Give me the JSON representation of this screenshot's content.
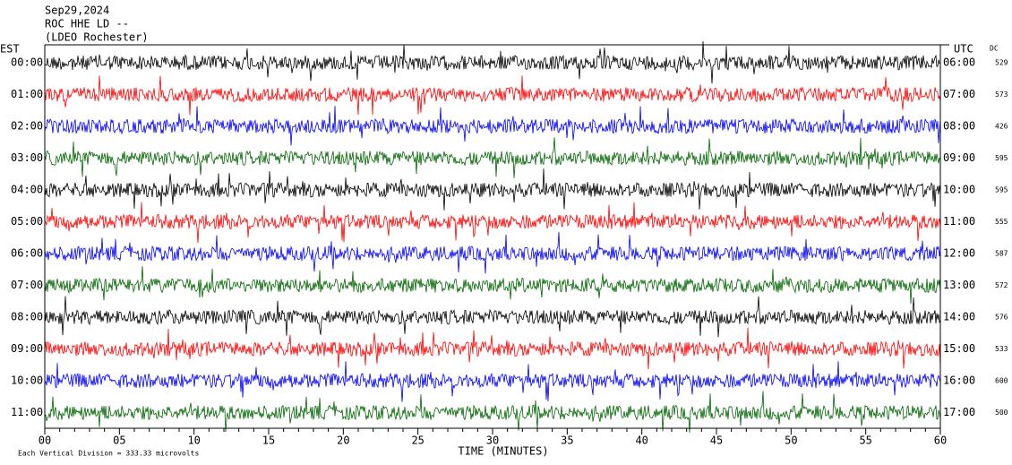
{
  "header": {
    "date": "Sep29,2024",
    "station": "ROC HHE LD --",
    "network": "(LDEO Rochester)"
  },
  "left_axis_title": "EST",
  "right_axis_title": "UTC",
  "dc_title": "DC",
  "left_labels": [
    "00:00",
    "01:00",
    "02:00",
    "03:00",
    "04:00",
    "05:00",
    "06:00",
    "07:00",
    "08:00",
    "09:00",
    "10:00",
    "11:00"
  ],
  "right_labels": [
    "06:00",
    "07:00",
    "08:00",
    "09:00",
    "10:00",
    "11:00",
    "12:00",
    "13:00",
    "14:00",
    "15:00",
    "16:00",
    "17:00"
  ],
  "dc_values": [
    529,
    573,
    426,
    595,
    595,
    555,
    587,
    572,
    576,
    533,
    600,
    500
  ],
  "x_ticks": [
    "00",
    "05",
    "10",
    "15",
    "20",
    "25",
    "30",
    "35",
    "40",
    "45",
    "50",
    "55",
    "60"
  ],
  "x_label": "TIME (MINUTES)",
  "footnote": "Each Vertical Division =  333.33 microvolts"
}
